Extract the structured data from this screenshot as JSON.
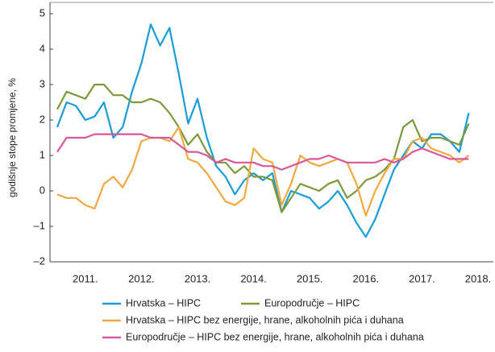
{
  "chart_data": {
    "type": "line",
    "y_label": "godišnje stope promjene, %",
    "categories": [
      null,
      null,
      null,
      "2011.",
      null,
      null,
      null,
      null,
      null,
      "2012.",
      null,
      null,
      null,
      null,
      null,
      "2013.",
      null,
      null,
      null,
      null,
      null,
      "2014.",
      null,
      null,
      null,
      null,
      null,
      "2015.",
      null,
      null,
      null,
      null,
      null,
      "2016.",
      null,
      null,
      null,
      null,
      null,
      "2017.",
      null,
      null,
      null,
      null,
      null,
      "2018."
    ],
    "series": [
      {
        "name": "Hrvatska – HIPC",
        "color": "#1a9cd8",
        "values": [
          1.8,
          2.5,
          2.4,
          2.0,
          2.1,
          2.5,
          1.5,
          1.8,
          2.8,
          3.6,
          4.7,
          4.1,
          4.6,
          3.3,
          1.9,
          2.6,
          1.5,
          0.7,
          0.4,
          -0.1,
          0.3,
          0.5,
          0.3,
          0.5,
          -0.6,
          0.0,
          -0.1,
          -0.2,
          -0.5,
          -0.3,
          0.0,
          -0.4,
          -0.9,
          -1.3,
          -0.8,
          -0.1,
          0.6,
          1.0,
          1.4,
          1.2,
          1.6,
          1.6,
          1.4,
          1.1,
          2.2,
          null
        ]
      },
      {
        "name": "Europodručje – HIPC",
        "color": "#7c9a3a",
        "values": [
          2.3,
          2.8,
          2.7,
          2.6,
          3.0,
          3.0,
          2.7,
          2.7,
          2.5,
          2.5,
          2.6,
          2.5,
          2.2,
          1.8,
          1.3,
          1.6,
          1.1,
          0.8,
          0.8,
          0.5,
          0.7,
          0.4,
          0.4,
          0.3,
          -0.6,
          -0.2,
          0.2,
          0.1,
          0.0,
          0.2,
          0.3,
          -0.2,
          0.0,
          0.3,
          0.4,
          0.6,
          0.9,
          1.8,
          2.0,
          1.4,
          1.5,
          1.5,
          1.4,
          1.3,
          1.9,
          null
        ]
      },
      {
        "name": "Hrvatska – HIPC bez energije, hrane, alkoholnih pića i duhana",
        "color": "#f5a742",
        "values": [
          -0.1,
          -0.2,
          -0.2,
          -0.4,
          -0.5,
          0.2,
          0.4,
          0.1,
          0.6,
          1.4,
          1.5,
          1.5,
          1.4,
          1.8,
          0.9,
          0.8,
          0.5,
          0.1,
          -0.3,
          -0.4,
          -0.2,
          1.2,
          0.9,
          0.8,
          -0.4,
          0.2,
          1.0,
          0.8,
          0.7,
          0.8,
          0.9,
          0.8,
          0.2,
          -0.7,
          0.0,
          0.5,
          0.9,
          0.9,
          1.4,
          1.5,
          1.2,
          1.1,
          1.0,
          0.8,
          1.0,
          null
        ]
      },
      {
        "name": "Europodručje – HIPC bez energije, hrane, alkoholnih pića i duhana",
        "color": "#d9579b",
        "values": [
          1.1,
          1.5,
          1.5,
          1.5,
          1.6,
          1.6,
          1.6,
          1.6,
          1.6,
          1.6,
          1.5,
          1.5,
          1.5,
          1.3,
          1.1,
          1.1,
          1.0,
          0.8,
          0.9,
          0.8,
          0.8,
          0.8,
          0.7,
          0.7,
          0.6,
          0.7,
          0.8,
          0.9,
          0.9,
          1.0,
          0.9,
          0.8,
          0.8,
          0.8,
          0.8,
          0.9,
          0.8,
          0.9,
          1.1,
          1.2,
          1.1,
          1.0,
          0.9,
          0.9,
          0.9,
          null
        ]
      }
    ],
    "ylim": [
      -2,
      5
    ],
    "yticks": [
      {
        "value": -2,
        "label": "–2"
      },
      {
        "value": -1,
        "label": "–1"
      },
      0,
      1,
      2,
      3,
      4,
      5
    ]
  }
}
